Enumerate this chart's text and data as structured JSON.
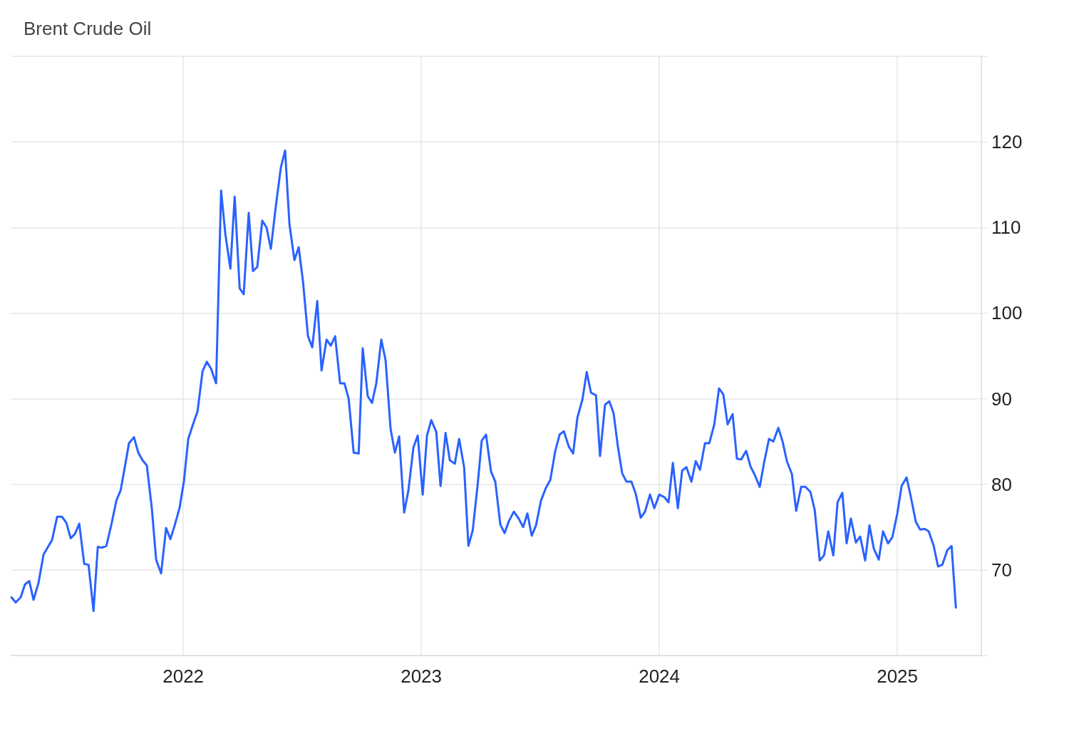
{
  "chart_data": {
    "type": "line",
    "title": "Brent Crude Oil",
    "x": [
      2021.278,
      2021.296,
      2021.317,
      2021.335,
      2021.353,
      2021.371,
      2021.392,
      2021.413,
      2021.449,
      2021.47,
      2021.491,
      2021.509,
      2021.527,
      2021.545,
      2021.563,
      2021.584,
      2021.602,
      2021.623,
      2021.641,
      2021.659,
      2021.677,
      2021.698,
      2021.719,
      2021.737,
      2021.757,
      2021.772,
      2021.793,
      2021.811,
      2021.829,
      2021.847,
      2021.868,
      2021.886,
      2021.907,
      2021.928,
      2021.946,
      2021.964,
      2021.985,
      2022.003,
      2022.021,
      2022.042,
      2022.06,
      2022.081,
      2022.099,
      2022.117,
      2022.138,
      2022.159,
      2022.177,
      2022.198,
      2022.216,
      2022.237,
      2022.254,
      2022.275,
      2022.293,
      2022.311,
      2022.332,
      2022.35,
      2022.368,
      2022.389,
      2022.41,
      2022.428,
      2022.446,
      2022.467,
      2022.485,
      2022.503,
      2022.524,
      2022.542,
      2022.563,
      2022.581,
      2022.602,
      2022.62,
      2022.638,
      2022.659,
      2022.677,
      2022.695,
      2022.716,
      2022.737,
      2022.754,
      2022.775,
      2022.793,
      2022.811,
      2022.832,
      2022.85,
      2022.871,
      2022.889,
      2022.907,
      2022.928,
      2022.946,
      2022.967,
      2022.985,
      2023.006,
      2023.024,
      2023.042,
      2023.063,
      2023.081,
      2023.102,
      2023.12,
      2023.141,
      2023.159,
      2023.18,
      2023.198,
      2023.216,
      2023.237,
      2023.254,
      2023.272,
      2023.293,
      2023.311,
      2023.332,
      2023.35,
      2023.368,
      2023.389,
      2023.407,
      2023.428,
      2023.446,
      2023.464,
      2023.482,
      2023.503,
      2023.524,
      2023.542,
      2023.563,
      2023.581,
      2023.599,
      2023.62,
      2023.638,
      2023.656,
      2023.677,
      2023.695,
      2023.713,
      2023.734,
      2023.751,
      2023.772,
      2023.79,
      2023.808,
      2023.826,
      2023.844,
      2023.862,
      2023.883,
      2023.901,
      2023.922,
      2023.94,
      2023.961,
      2023.979,
      2024.0,
      2024.021,
      2024.039,
      2024.057,
      2024.078,
      2024.096,
      2024.114,
      2024.135,
      2024.153,
      2024.171,
      2024.192,
      2024.21,
      2024.231,
      2024.251,
      2024.269,
      2024.287,
      2024.308,
      2024.326,
      2024.344,
      2024.365,
      2024.383,
      2024.401,
      2024.422,
      2024.44,
      2024.461,
      2024.479,
      2024.5,
      2024.518,
      2024.536,
      2024.557,
      2024.575,
      2024.596,
      2024.614,
      2024.635,
      2024.653,
      2024.674,
      2024.692,
      2024.71,
      2024.731,
      2024.749,
      2024.769,
      2024.787,
      2024.805,
      2024.826,
      2024.844,
      2024.865,
      2024.883,
      2024.901,
      2024.922,
      2024.94,
      2024.961,
      2024.979,
      2025.0,
      2025.018,
      2025.039,
      2025.057,
      2025.078,
      2025.096,
      2025.114,
      2025.132,
      2025.153,
      2025.171,
      2025.189,
      2025.21,
      2025.228,
      2025.246
    ],
    "series": [
      {
        "color": "#2962ff",
        "values": [
          66.8,
          66.2,
          66.8,
          68.3,
          68.7,
          66.5,
          68.5,
          71.8,
          73.5,
          76.2,
          76.2,
          75.5,
          73.7,
          74.2,
          75.4,
          70.7,
          70.6,
          65.2,
          72.7,
          72.6,
          72.8,
          75.3,
          78.1,
          79.3,
          82.4,
          84.8,
          85.5,
          83.7,
          82.8,
          82.2,
          77.2,
          71.2,
          69.6,
          74.9,
          73.6,
          75.2,
          77.3,
          80.4,
          85.3,
          87.1,
          88.5,
          93.2,
          94.3,
          93.5,
          91.8,
          114.3,
          109.2,
          105.2,
          113.6,
          102.9,
          102.2,
          111.7,
          104.9,
          105.4,
          110.8,
          110.0,
          107.5,
          112.5,
          117.0,
          119.0,
          110.4,
          106.2,
          107.7,
          103.7,
          97.3,
          96.0,
          101.4,
          93.3,
          96.9,
          96.2,
          97.3,
          91.8,
          91.8,
          90.0,
          83.7,
          83.6,
          95.9,
          90.3,
          89.5,
          91.8,
          96.9,
          94.5,
          86.5,
          83.7,
          85.6,
          76.7,
          79.3,
          84.3,
          85.7,
          78.8,
          85.7,
          87.5,
          86.1,
          79.8,
          86.0,
          82.8,
          82.4,
          85.3,
          82.0,
          72.8,
          74.6,
          80.0,
          85.1,
          85.8,
          81.5,
          80.3,
          75.3,
          74.3,
          75.7,
          76.8,
          76.1,
          75.0,
          76.6,
          74.0,
          75.2,
          78.1,
          79.6,
          80.5,
          83.9,
          85.8,
          86.2,
          84.4,
          83.6,
          87.8,
          89.9,
          93.1,
          90.7,
          90.4,
          83.3,
          89.3,
          89.7,
          88.3,
          84.4,
          81.3,
          80.3,
          80.3,
          78.9,
          76.1,
          76.8,
          78.8,
          77.2,
          78.8,
          78.5,
          77.9,
          82.5,
          77.2,
          81.6,
          82.0,
          80.3,
          82.7,
          81.7,
          84.8,
          84.8,
          87.0,
          91.2,
          90.5,
          87.0,
          88.2,
          83.0,
          82.9,
          83.9,
          82.1,
          81.1,
          79.7,
          82.5,
          85.3,
          85.0,
          86.6,
          85.0,
          82.7,
          81.2,
          76.9,
          79.7,
          79.7,
          79.1,
          77.0,
          71.1,
          71.7,
          74.5,
          71.7,
          77.9,
          79.0,
          73.1,
          76.0,
          73.2,
          73.9,
          71.1,
          75.2,
          72.5,
          71.2,
          74.5,
          73.1,
          73.8,
          76.6,
          79.8,
          80.8,
          78.5,
          75.6,
          74.7,
          74.8,
          74.5,
          72.8,
          70.4,
          70.6,
          72.3,
          72.8,
          65.6
        ]
      }
    ],
    "xlim": [
      2021.278,
      2025.353
    ],
    "xticks": [
      2022,
      2023,
      2024,
      2025
    ],
    "ylim": [
      60,
      130
    ],
    "yticks": [
      {
        "value": 60,
        "label": null
      },
      70,
      80,
      90,
      100,
      110,
      120,
      {
        "value": 130,
        "label": null
      }
    ],
    "grid": true,
    "marker": "none",
    "line_style": "solid"
  }
}
